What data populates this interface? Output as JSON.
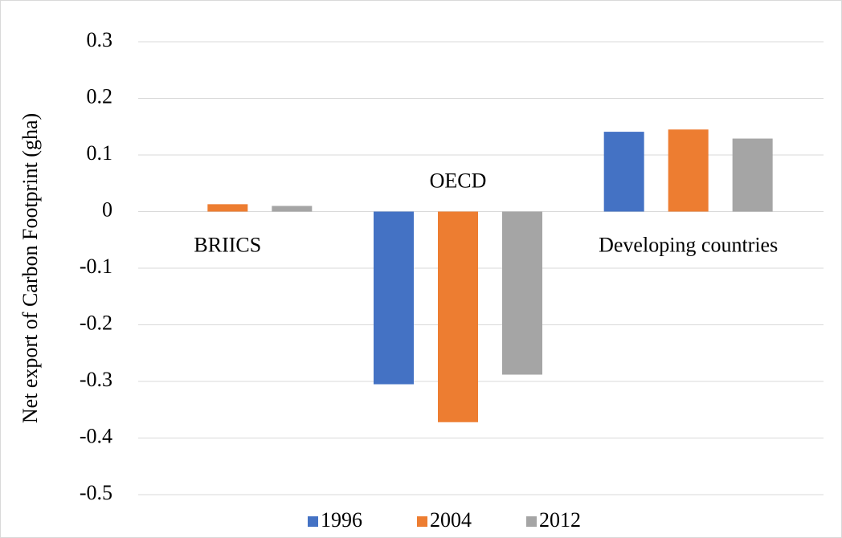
{
  "chart_data": {
    "type": "bar",
    "y_label": "Net export of Carbon Footprint (gha)",
    "categories": [
      "BRIICS",
      "OECD",
      "Developing countries"
    ],
    "series": [
      {
        "name": "1996",
        "color": "#4472c4",
        "values": [
          0,
          -0.305,
          0.141
        ]
      },
      {
        "name": "2004",
        "color": "#ed7d31",
        "values": [
          0.013,
          -0.372,
          0.145
        ]
      },
      {
        "name": "2012",
        "color": "#a5a5a5",
        "values": [
          0.01,
          -0.288,
          0.129
        ]
      }
    ],
    "ylim": [
      -0.5,
      0.3
    ],
    "yticks": [
      -0.5,
      -0.4,
      -0.3,
      -0.2,
      -0.1,
      0,
      0.1,
      0.2,
      0.3
    ],
    "grid": true,
    "legend": "bottom"
  }
}
